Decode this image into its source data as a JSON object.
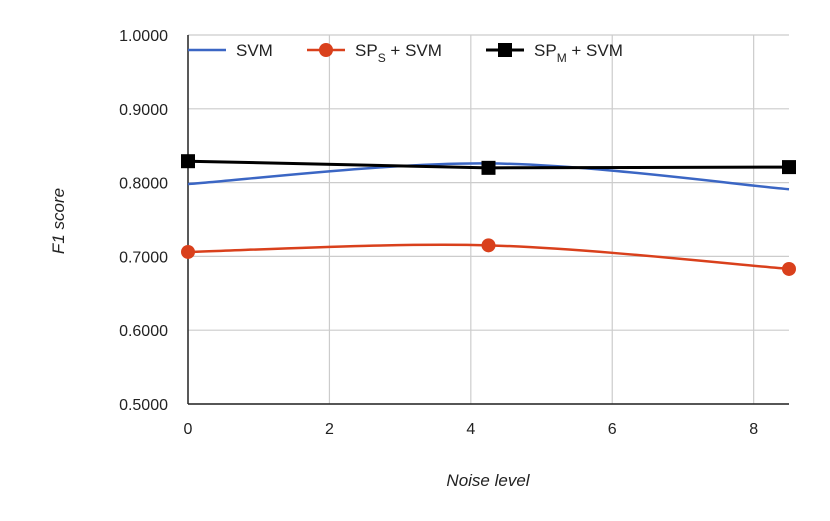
{
  "chart_data": {
    "type": "line",
    "title": "",
    "xlabel": "Noise level",
    "ylabel": "F1 score",
    "xlim": [
      0,
      8.5
    ],
    "ylim": [
      0.5,
      1.0
    ],
    "x_ticks": [
      "0",
      "2",
      "4",
      "6",
      "8"
    ],
    "y_ticks": [
      "0.5000",
      "0.6000",
      "0.7000",
      "0.8000",
      "0.9000",
      "1.0000"
    ],
    "grid": true,
    "legend_position": "top",
    "series": [
      {
        "name": "SVM",
        "name_main": "SVM",
        "name_sub": "",
        "name_suffix": "",
        "color": "#3b66c4",
        "marker": "none",
        "smooth": true,
        "x": [
          0,
          4.25,
          8.5
        ],
        "values": [
          0.798,
          0.826,
          0.791
        ]
      },
      {
        "name": "SPS + SVM",
        "name_main": "SP",
        "name_sub": "S",
        "name_suffix": " + SVM",
        "color": "#d9401c",
        "marker": "circle",
        "smooth": true,
        "x": [
          0,
          4.25,
          8.5
        ],
        "values": [
          0.706,
          0.715,
          0.683
        ]
      },
      {
        "name": "SPM + SVM",
        "name_main": "SP",
        "name_sub": "M",
        "name_suffix": " + SVM",
        "color": "#000000",
        "marker": "square",
        "smooth": false,
        "x": [
          0,
          4.25,
          8.5
        ],
        "values": [
          0.829,
          0.82,
          0.821
        ]
      }
    ]
  }
}
